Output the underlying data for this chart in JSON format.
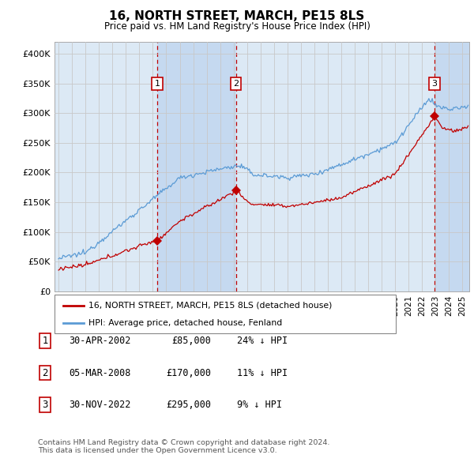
{
  "title": "16, NORTH STREET, MARCH, PE15 8LS",
  "subtitle": "Price paid vs. HM Land Registry's House Price Index (HPI)",
  "ylabel_ticks": [
    "£0",
    "£50K",
    "£100K",
    "£150K",
    "£200K",
    "£250K",
    "£300K",
    "£350K",
    "£400K"
  ],
  "ytick_vals": [
    0,
    50000,
    100000,
    150000,
    200000,
    250000,
    300000,
    350000,
    400000
  ],
  "ylim": [
    0,
    420000
  ],
  "xlim_start": 1994.7,
  "xlim_end": 2025.5,
  "sales": [
    {
      "num": 1,
      "date": "30-APR-2002",
      "price": 85000,
      "hpi_text": "24% ↓ HPI",
      "x": 2002.33
    },
    {
      "num": 2,
      "date": "05-MAR-2008",
      "price": 170000,
      "hpi_text": "11% ↓ HPI",
      "x": 2008.17
    },
    {
      "num": 3,
      "date": "30-NOV-2022",
      "price": 295000,
      "hpi_text": "9% ↓ HPI",
      "x": 2022.92
    }
  ],
  "legend_entries": [
    "16, NORTH STREET, MARCH, PE15 8LS (detached house)",
    "HPI: Average price, detached house, Fenland"
  ],
  "table_rows": [
    [
      "1",
      "30-APR-2002",
      "£85,000",
      "24% ↓ HPI"
    ],
    [
      "2",
      "05-MAR-2008",
      "£170,000",
      "11% ↓ HPI"
    ],
    [
      "3",
      "30-NOV-2022",
      "£295,000",
      "9% ↓ HPI"
    ]
  ],
  "footer": "Contains HM Land Registry data © Crown copyright and database right 2024.\nThis data is licensed under the Open Government Licence v3.0.",
  "hpi_color": "#5b9bd5",
  "price_color": "#c00000",
  "vline_color": "#c00000",
  "box_color": "#c00000",
  "grid_color": "#c8c8c8",
  "bg_color": "#dce9f5",
  "shade_color": "#c5d9f0"
}
